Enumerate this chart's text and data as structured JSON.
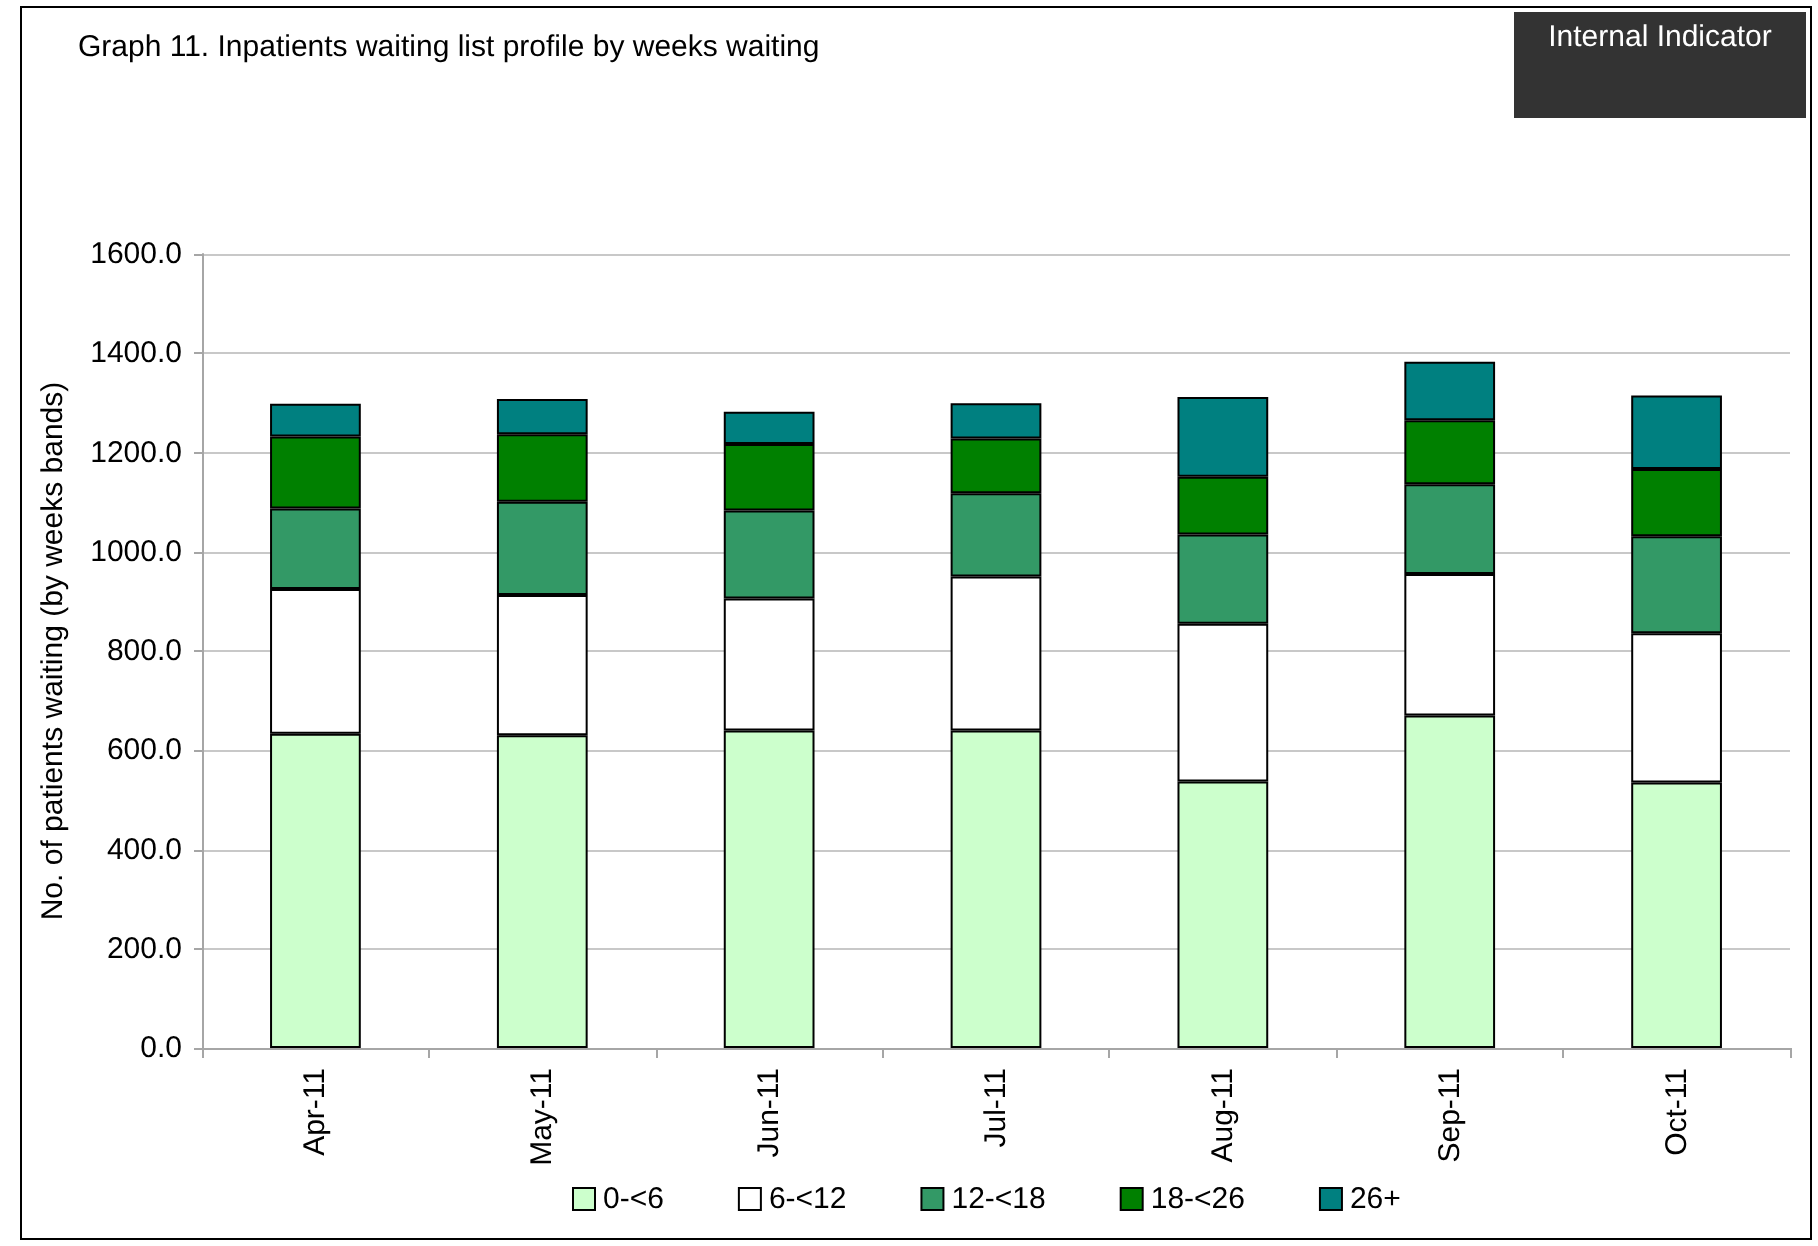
{
  "chart_data": {
    "type": "bar",
    "title": "Graph 11. Inpatients waiting list profile by weeks waiting",
    "ylabel": "No. of patients waiting (by weeks bands)",
    "annotations": [
      "Internal Indicator"
    ],
    "categories": [
      "Apr-11",
      "May-11",
      "Jun-11",
      "Jul-11",
      "Aug-11",
      "Sep-11",
      "Oct-11"
    ],
    "series": [
      {
        "name": "0-<6",
        "color": "#ccffcc",
        "values": [
          633,
          630,
          640,
          640,
          537,
          670,
          535
        ]
      },
      {
        "name": "6-<12",
        "color": "#ffffff",
        "values": [
          292,
          283,
          266,
          310,
          318,
          285,
          301
        ]
      },
      {
        "name": "12-<18",
        "color": "#339966",
        "values": [
          162,
          188,
          177,
          168,
          180,
          181,
          195
        ]
      },
      {
        "name": "18-<26",
        "color": "#008000",
        "values": [
          145,
          136,
          134,
          110,
          116,
          129,
          136
        ]
      },
      {
        "name": "26+",
        "color": "#008080",
        "values": [
          66,
          71,
          65,
          71,
          161,
          118,
          148
        ]
      }
    ],
    "stacked": true,
    "ylim": [
      0,
      1600
    ],
    "yticks": [
      {
        "value": 0,
        "label": "0.0"
      },
      {
        "value": 200,
        "label": "200.0"
      },
      {
        "value": 400,
        "label": "400.0"
      },
      {
        "value": 600,
        "label": "600.0"
      },
      {
        "value": 800,
        "label": "800.0"
      },
      {
        "value": 1000,
        "label": "1000.0"
      },
      {
        "value": 1200,
        "label": "1200.0"
      },
      {
        "value": 1400,
        "label": "1400.0"
      },
      {
        "value": 1600,
        "label": "1600.0"
      }
    ],
    "grid": "y",
    "legend": "bottom"
  }
}
